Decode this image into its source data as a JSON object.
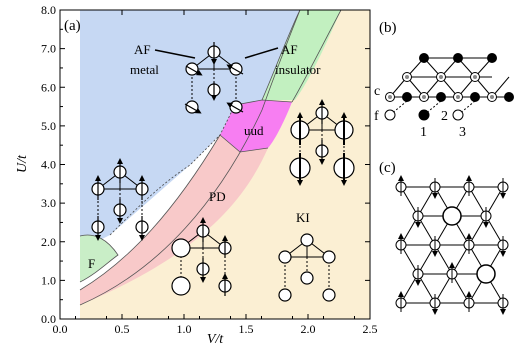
{
  "panel_labels": {
    "a": "(a)",
    "b": "(b)",
    "c": "(c)"
  },
  "axes": {
    "xlabel": "V/t",
    "ylabel": "U/t",
    "x_ticks": [
      "0.0",
      "0.5",
      "1.0",
      "1.5",
      "2.0",
      "2.5"
    ],
    "y_ticks": [
      "0.0",
      "1.0",
      "2.0",
      "3.0",
      "4.0",
      "5.0",
      "6.0",
      "7.0",
      "8.0"
    ],
    "x_range": [
      0.0,
      2.5
    ],
    "y_range": [
      0.0,
      8.0
    ]
  },
  "phase_labels": {
    "af_metal_line1": "AF",
    "af_metal_line2": "metal",
    "af_ins_line1": "AF",
    "af_ins_line2": "insulator",
    "uud": "uud",
    "pd": "PD",
    "ki": "KI",
    "f": "F"
  },
  "panel_b": {
    "row_c": "c",
    "row_f": "f",
    "sites": [
      "1",
      "2",
      "3"
    ]
  },
  "colors": {
    "af_metal": "#c6d8f3",
    "af_insulator": "#c2f0c0",
    "uud": "#f77ef2",
    "pd": "#f8c9c9",
    "ki": "#fbefd3",
    "ferro": "#c9eec7"
  }
}
